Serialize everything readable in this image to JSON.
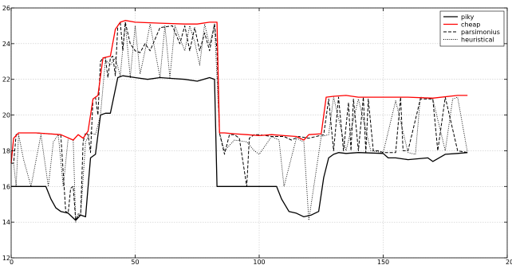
{
  "chart_data": {
    "type": "line",
    "xlim": [
      0,
      200
    ],
    "ylim": [
      12,
      26
    ],
    "xticks": [
      0,
      50,
      100,
      150,
      200
    ],
    "yticks": [
      12,
      14,
      16,
      18,
      20,
      22,
      24,
      26
    ],
    "grid": true,
    "legend_position": "top-right",
    "series": [
      {
        "name": "piky",
        "color": "#000000",
        "style": "solid",
        "x": [
          0,
          14,
          16,
          18,
          20,
          23,
          26,
          28,
          30,
          32,
          34,
          36,
          38,
          40,
          43,
          45,
          50,
          55,
          60,
          65,
          70,
          75,
          80,
          82,
          83,
          85,
          90,
          95,
          100,
          107,
          109,
          112,
          115,
          118,
          121,
          124,
          126,
          128,
          130,
          132,
          135,
          140,
          150,
          152,
          155,
          160,
          168,
          170,
          175,
          180,
          184
        ],
        "y": [
          16,
          16,
          15.3,
          14.8,
          14.6,
          14.5,
          14.1,
          14.4,
          14.3,
          17.6,
          17.8,
          20.0,
          20.1,
          20.1,
          22.1,
          22.2,
          22.1,
          22.0,
          22.1,
          22.05,
          22.0,
          21.9,
          22.1,
          22.0,
          16.0,
          16.0,
          16.0,
          16.0,
          16.0,
          16.0,
          15.3,
          14.6,
          14.5,
          14.3,
          14.4,
          14.6,
          16.5,
          17.6,
          17.8,
          17.9,
          17.85,
          17.9,
          17.85,
          17.6,
          17.6,
          17.5,
          17.6,
          17.4,
          17.8,
          17.85,
          17.9
        ]
      },
      {
        "name": "cheap",
        "color": "#ff0000",
        "style": "solid",
        "x": [
          0,
          1,
          3,
          10,
          20,
          25,
          27,
          29,
          31,
          33,
          35,
          37,
          40,
          42,
          44,
          46,
          50,
          60,
          70,
          75,
          80,
          83,
          84,
          86,
          90,
          95,
          100,
          105,
          110,
          115,
          118,
          120,
          125,
          127,
          130,
          135,
          140,
          150,
          160,
          170,
          180,
          184
        ],
        "y": [
          17.3,
          18.7,
          19.0,
          19.0,
          18.9,
          18.6,
          18.9,
          18.7,
          19.1,
          20.9,
          21.1,
          23.2,
          23.3,
          24.8,
          25.2,
          25.3,
          25.2,
          25.15,
          25.1,
          25.1,
          25.2,
          25.2,
          19.0,
          19.0,
          18.95,
          18.9,
          18.85,
          18.9,
          18.85,
          18.8,
          18.6,
          18.9,
          18.95,
          21.0,
          21.05,
          21.1,
          21.0,
          21.0,
          21.0,
          20.95,
          21.1,
          21.1
        ]
      },
      {
        "name": "parsimonius",
        "color": "#000000",
        "style": "dashed",
        "x": [
          0,
          1,
          2,
          3,
          10,
          20,
          22,
          23,
          24,
          25,
          26,
          27,
          28,
          29,
          30,
          31,
          32,
          33,
          34,
          35,
          36,
          37,
          38,
          39,
          40,
          41,
          42,
          43,
          44,
          45,
          46,
          48,
          50,
          52,
          54,
          56,
          60,
          65,
          68,
          70,
          72,
          74,
          76,
          78,
          80,
          82,
          83,
          84,
          86,
          88,
          90,
          92,
          95,
          96,
          98,
          100,
          105,
          110,
          113,
          116,
          120,
          126,
          128,
          130,
          132,
          134,
          136,
          137,
          138,
          140,
          142,
          143,
          144,
          146,
          148,
          150,
          155,
          157,
          158,
          160,
          165,
          170,
          172,
          175,
          180,
          184
        ],
        "y": [
          17.3,
          17.3,
          18.9,
          19.0,
          19.0,
          18.9,
          14.6,
          14.5,
          15.9,
          16.0,
          14.1,
          14.4,
          14.4,
          18.5,
          19.0,
          18.9,
          17.9,
          20.9,
          21.0,
          20.0,
          23.0,
          23.2,
          23.2,
          22.1,
          23.2,
          23.3,
          22.2,
          25.0,
          25.2,
          23.6,
          25.2,
          24.0,
          23.6,
          23.5,
          24.0,
          23.6,
          24.9,
          25.0,
          24.0,
          25.0,
          23.6,
          24.9,
          23.6,
          24.6,
          23.6,
          25.1,
          23.6,
          19.0,
          17.8,
          18.9,
          18.9,
          18.7,
          16.0,
          18.7,
          18.9,
          18.9,
          18.8,
          18.8,
          18.6,
          18.8,
          18.7,
          18.9,
          20.9,
          18.0,
          21.0,
          18.0,
          20.7,
          18.0,
          20.9,
          18.0,
          21.0,
          17.9,
          20.9,
          18.0,
          18.0,
          17.9,
          17.9,
          21.0,
          18.0,
          18.0,
          20.9,
          20.9,
          18.0,
          21.0,
          18.0,
          17.9
        ]
      },
      {
        "name": "heuristical",
        "color": "#000000",
        "style": "dotted",
        "x": [
          0,
          1,
          2,
          3,
          5,
          8,
          12,
          15,
          17,
          19,
          21,
          23,
          25,
          26,
          27,
          28,
          30,
          32,
          34,
          36,
          38,
          40,
          42,
          44,
          46,
          48,
          50,
          52,
          54,
          56,
          60,
          62,
          64,
          66,
          70,
          72,
          74,
          76,
          78,
          80,
          82,
          84,
          86,
          90,
          95,
          98,
          100,
          105,
          108,
          110,
          115,
          118,
          120,
          125,
          128,
          130,
          135,
          140,
          145,
          150,
          155,
          160,
          163,
          165,
          170,
          175,
          178,
          180,
          184
        ],
        "y": [
          17.3,
          17.3,
          16.0,
          18.9,
          17.5,
          16.0,
          18.9,
          16.0,
          18.5,
          18.9,
          16.0,
          18.7,
          18.6,
          14.0,
          14.5,
          14.4,
          18.5,
          19.0,
          18.9,
          20.0,
          23.1,
          22.8,
          23.2,
          22.2,
          25.2,
          22.1,
          25.0,
          22.3,
          23.6,
          25.1,
          22.1,
          25.0,
          22.1,
          25.0,
          23.6,
          25.0,
          24.1,
          22.8,
          25.1,
          23.9,
          25.1,
          19.0,
          18.0,
          18.6,
          18.5,
          18.0,
          17.8,
          18.8,
          18.6,
          16.0,
          18.7,
          18.5,
          14.1,
          18.8,
          18.9,
          21.0,
          18.0,
          20.9,
          18.0,
          17.9,
          20.8,
          17.9,
          17.8,
          21.0,
          20.9,
          18.0,
          20.9,
          21.0,
          17.9
        ]
      }
    ]
  }
}
